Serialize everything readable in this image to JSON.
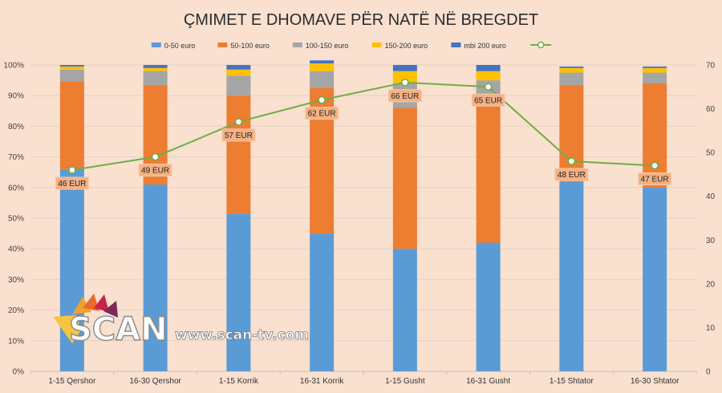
{
  "chart_data": {
    "type": "bar",
    "stacked": true,
    "percent_stacked": true,
    "title": "ÇMIMET E DHOMAVE PËR NATË NË BREGDET",
    "categories": [
      "1-15 Qershor",
      "16-30 Qershor",
      "1-15 Korrik",
      "16-31 Korrik",
      "1-15 Gusht",
      "16-31 Gusht",
      "1-15 Shtator",
      "16-30 Shtator"
    ],
    "series": [
      {
        "name": "0-50 euro",
        "color": "#5b9bd5",
        "values": [
          66,
          61,
          51.5,
          45,
          40,
          42,
          62,
          60
        ]
      },
      {
        "name": "50-100 euro",
        "color": "#ed7d31",
        "values": [
          28.5,
          32.5,
          38.5,
          47.5,
          46,
          48.5,
          31.5,
          34
        ]
      },
      {
        "name": "100-150 euro",
        "color": "#a5a5a5",
        "values": [
          4,
          4.5,
          6.5,
          5.5,
          8,
          4.5,
          4,
          3.5
        ]
      },
      {
        "name": "150-200 euro",
        "color": "#ffc000",
        "values": [
          1,
          1,
          2,
          2.5,
          4,
          3,
          1.5,
          1.5
        ]
      },
      {
        "name": "mbi 200 euro",
        "color": "#4472c4",
        "values": [
          0.5,
          1,
          1.5,
          1,
          2,
          2,
          0.5,
          0.5
        ]
      }
    ],
    "line": {
      "name": "",
      "color": "#70ad47",
      "axis": "right",
      "values": [
        46,
        49,
        57,
        62,
        66,
        65,
        48,
        47
      ],
      "labels": [
        "46 EUR",
        "49 EUR",
        "57 EUR",
        "62 EUR",
        "66 EUR",
        "65 EUR",
        "48 EUR",
        "47 EUR"
      ]
    },
    "y_left": {
      "min": 0,
      "max": 100,
      "step": 10,
      "ticks": [
        "0%",
        "10%",
        "20%",
        "30%",
        "40%",
        "50%",
        "60%",
        "70%",
        "80%",
        "90%",
        "100%"
      ]
    },
    "y_right": {
      "min": 0,
      "max": 70,
      "step": 10,
      "ticks": [
        "0",
        "10",
        "20",
        "30",
        "40",
        "50",
        "60",
        "70"
      ]
    },
    "legend": "top-center",
    "grid": true
  },
  "watermark": {
    "brand": "SCAN",
    "url": "www.scan-tv.com"
  }
}
